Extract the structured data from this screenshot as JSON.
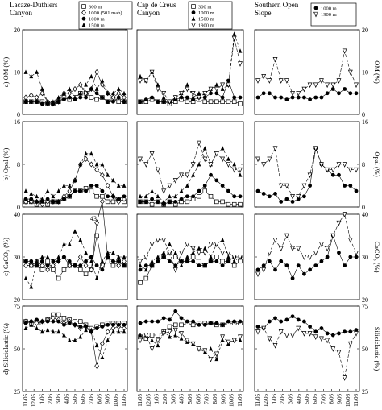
{
  "columns": [
    {
      "title": "Lacaze-Duthiers\nCanyon"
    },
    {
      "title": "Cap de Creus\nCanyon"
    },
    {
      "title": "Southern Open\nSlope"
    }
  ],
  "legends": [
    [
      "300 m",
      "1000 (501 mab)",
      "1000 m",
      "1500 m"
    ],
    [
      "300 m",
      "1000 m",
      "1500 m",
      "1900 m"
    ],
    [
      "1000 m",
      "1900 m"
    ]
  ],
  "rows": [
    {
      "left_label": "a) OM (%)",
      "right_label": "OM (%)",
      "ylim": [
        0,
        20
      ],
      "ticks": [
        "0",
        "10",
        "20"
      ]
    },
    {
      "left_label": "b) Opal (%)",
      "right_label": "Opal (%)",
      "ylim": [
        0,
        16
      ],
      "ticks": [
        "0",
        "8",
        "16"
      ]
    },
    {
      "left_label": "c) CaCO₃ (%)",
      "right_label": "CaCO₃ (%)",
      "ylim": [
        20,
        40
      ],
      "ticks": [
        "20",
        "30",
        "40"
      ]
    },
    {
      "left_label": "d) Siliciclastic (%)",
      "right_label": "Siliciclastic (%)",
      "ylim": [
        25,
        75
      ],
      "ticks": [
        "25",
        "50",
        "75"
      ]
    }
  ],
  "annotation": "43",
  "x_ticks": [
    "11/05",
    "12/05",
    "1/06",
    "2/06",
    "3/06",
    "4/06",
    "5/06",
    "6/06",
    "7/06",
    "8/06",
    "9/06",
    "10/06",
    "11/06"
  ],
  "chart_data": [
    {
      "type": "line",
      "panel": "Lacaze-Duthiers OM",
      "series": [
        {
          "name": "300 m",
          "marker": "open-square",
          "values": [
            3,
            3,
            3,
            3,
            2.5,
            2.5,
            3,
            4,
            3.5,
            4,
            5,
            5,
            4,
            3.5,
            4,
            3,
            3.5,
            3,
            3
          ]
        },
        {
          "name": "1000 (501 mab)",
          "marker": "open-diamond",
          "values": [
            4,
            4.5,
            4,
            5,
            3,
            2.5,
            3,
            5,
            5,
            6,
            7,
            5,
            6,
            10,
            7,
            5,
            4,
            5,
            4
          ]
        },
        {
          "name": "1000 m",
          "marker": "filled-circle",
          "values": [
            3,
            3,
            3,
            2.5,
            2.5,
            2.5,
            3,
            3.5,
            4,
            3.5,
            4,
            4,
            6,
            5,
            4,
            3,
            3,
            4,
            3
          ]
        },
        {
          "name": "1500 m",
          "marker": "filled-triangle",
          "values": [
            10,
            9,
            10,
            6,
            3,
            3,
            4,
            5,
            6,
            4,
            5,
            7,
            9,
            6,
            8,
            5,
            5,
            6,
            5
          ]
        }
      ]
    },
    {
      "type": "line",
      "panel": "Cap de Creus OM",
      "series": [
        {
          "name": "300 m",
          "marker": "open-square",
          "values": [
            3,
            3,
            3.5,
            3,
            3,
            2.5,
            3,
            3.5,
            3,
            3,
            3.5,
            3,
            3,
            3,
            3,
            3,
            3,
            2.5
          ]
        },
        {
          "name": "1000 m",
          "marker": "filled-circle",
          "values": [
            3,
            3.5,
            4,
            3,
            3,
            3,
            3.5,
            4,
            4,
            3.5,
            4,
            4,
            5,
            5,
            4,
            8,
            4,
            4
          ]
        },
        {
          "name": "1500 m",
          "marker": "filled-triangle",
          "values": [
            9,
            8,
            10,
            7,
            4,
            3,
            4,
            5,
            7,
            4,
            5,
            5,
            6,
            7,
            6,
            7,
            19,
            15
          ]
        },
        {
          "name": "1900 m",
          "marker": "open-inverted-triangle",
          "values": [
            8,
            8,
            10,
            6,
            5,
            3,
            4,
            5,
            6,
            5,
            4,
            5,
            6,
            6,
            7,
            7,
            18,
            12
          ]
        }
      ]
    },
    {
      "type": "line",
      "panel": "Southern Open Slope OM",
      "series": [
        {
          "name": "1000 m",
          "marker": "filled-circle",
          "values": [
            4,
            5,
            5,
            4,
            4,
            3.5,
            4,
            4,
            4,
            3.5,
            4,
            4,
            5,
            6,
            5,
            6,
            5,
            5
          ]
        },
        {
          "name": "1900 m",
          "marker": "open-inverted-triangle",
          "values": [
            8,
            9,
            8,
            13,
            8,
            8,
            5,
            5,
            6,
            7,
            7,
            8,
            7,
            7,
            8,
            15,
            10,
            7
          ]
        }
      ]
    },
    {
      "type": "line",
      "panel": "Lacaze-Duthiers Opal",
      "series": [
        {
          "name": "300 m",
          "marker": "open-square",
          "values": [
            1,
            1,
            0.5,
            1,
            0.5,
            1,
            1,
            1.5,
            2,
            3,
            3,
            3.5,
            3,
            2,
            2,
            1,
            1,
            1.5,
            1
          ]
        },
        {
          "name": "1000 (501 mab)",
          "marker": "open-diamond",
          "values": [
            1,
            1,
            1,
            0.5,
            1,
            1,
            1,
            2,
            3,
            5,
            8,
            9,
            8,
            7,
            6,
            4,
            2,
            1,
            1.5
          ]
        },
        {
          "name": "1000 m",
          "marker": "filled-circle",
          "values": [
            1.5,
            1.5,
            1,
            1,
            1.5,
            1,
            1,
            1.5,
            2,
            3,
            3,
            3,
            4,
            4,
            3,
            2,
            2,
            1.5,
            2
          ]
        },
        {
          "name": "1500 m",
          "marker": "filled-triangle",
          "values": [
            3,
            2.5,
            2,
            1.5,
            3,
            2,
            3,
            4,
            4,
            5,
            8,
            10,
            10,
            8,
            8,
            6,
            5,
            4,
            4
          ]
        }
      ]
    },
    {
      "type": "line",
      "panel": "Cap de Creus Opal",
      "series": [
        {
          "name": "300 m",
          "marker": "open-square",
          "values": [
            1,
            1,
            0.5,
            1,
            0.5,
            1,
            0.5,
            1,
            1,
            1.5,
            2,
            3,
            2,
            1,
            1,
            0.5,
            0.5,
            0.5
          ]
        },
        {
          "name": "1000 m",
          "marker": "filled-circle",
          "values": [
            1,
            1,
            1.5,
            1,
            0.5,
            1,
            1,
            1.5,
            2,
            2,
            3,
            4,
            6,
            5,
            4,
            3,
            2,
            2
          ]
        },
        {
          "name": "1500 m",
          "marker": "filled-triangle",
          "values": [
            2,
            2,
            3,
            2,
            1,
            2,
            2,
            3,
            4,
            6,
            8,
            11,
            8,
            10,
            11,
            9,
            8,
            6
          ]
        },
        {
          "name": "1900 m",
          "marker": "open-inverted-triangle",
          "values": [
            9,
            8,
            10,
            7,
            3,
            4,
            5,
            6,
            6,
            8,
            12,
            9,
            8,
            10,
            9,
            8,
            7,
            7
          ]
        }
      ]
    },
    {
      "type": "line",
      "panel": "Southern Open Slope Opal",
      "series": [
        {
          "name": "1000 m",
          "marker": "filled-circle",
          "values": [
            3,
            2.5,
            2,
            2.5,
            1,
            1.5,
            1,
            1.5,
            2,
            4,
            11,
            8,
            7,
            6,
            6,
            4,
            4,
            3
          ]
        },
        {
          "name": "1900 m",
          "marker": "open-inverted-triangle",
          "values": [
            9,
            8,
            9,
            11,
            4,
            4,
            2,
            2,
            4,
            6,
            11,
            8,
            7,
            7,
            8,
            8,
            7,
            7
          ]
        }
      ]
    },
    {
      "type": "line",
      "panel": "Lacaze-Duthiers CaCO3",
      "series": [
        {
          "name": "300 m",
          "marker": "open-square",
          "values": [
            29,
            28,
            28,
            27,
            29,
            27,
            25,
            27,
            28,
            28,
            27,
            26,
            27,
            35,
            28,
            29,
            28,
            29,
            28
          ]
        },
        {
          "name": "1000 (501 mab)",
          "marker": "open-diamond",
          "values": [
            28,
            28,
            29,
            28,
            27,
            28,
            29,
            30,
            28,
            28,
            30,
            28,
            27,
            38,
            43,
            30,
            29,
            28,
            29
          ]
        },
        {
          "name": "1000 m",
          "marker": "filled-circle",
          "values": [
            29,
            29,
            28,
            29,
            28,
            29,
            29,
            30,
            29,
            28,
            28,
            29,
            30,
            28,
            27,
            30,
            29,
            29,
            28
          ]
        },
        {
          "name": "1500 m",
          "marker": "filled-triangle",
          "values": [
            25,
            23,
            29,
            30,
            30,
            29,
            30,
            33,
            33,
            36,
            34,
            31,
            29,
            25,
            29,
            31,
            31,
            30,
            30
          ]
        }
      ]
    },
    {
      "type": "line",
      "panel": "Cap de Creus CaCO3",
      "series": [
        {
          "name": "300 m",
          "marker": "open-square",
          "values": [
            24,
            25,
            28,
            29,
            30,
            31,
            30,
            29,
            29,
            30,
            29,
            28,
            29,
            30,
            29,
            29,
            28,
            29
          ]
        },
        {
          "name": "1000 m",
          "marker": "filled-circle",
          "values": [
            27,
            28,
            28,
            29,
            30,
            29,
            28,
            29,
            29,
            29,
            28,
            28,
            29,
            29,
            28,
            29,
            30,
            30
          ]
        },
        {
          "name": "1500 m",
          "marker": "filled-triangle",
          "values": [
            28,
            27,
            29,
            30,
            31,
            33,
            31,
            28,
            30,
            31,
            32,
            32,
            30,
            33,
            34,
            30,
            29,
            30
          ]
        },
        {
          "name": "1900 m",
          "marker": "open-inverted-triangle",
          "values": [
            29,
            30,
            33,
            34,
            34,
            31,
            27,
            31,
            33,
            32,
            31,
            31,
            33,
            33,
            31,
            31,
            30,
            30
          ]
        }
      ]
    },
    {
      "type": "line",
      "panel": "Southern Open Slope CaCO3",
      "series": [
        {
          "name": "1000 m",
          "marker": "filled-circle",
          "values": [
            27,
            28,
            29,
            27,
            29,
            28,
            25,
            28,
            26,
            27,
            28,
            29,
            30,
            35,
            31,
            28,
            30,
            30
          ]
        },
        {
          "name": "1900 m",
          "marker": "open-inverted-triangle",
          "values": [
            26,
            27,
            31,
            34,
            32,
            35,
            32,
            32,
            30,
            30,
            31,
            33,
            32,
            35,
            38,
            40,
            34,
            31
          ]
        }
      ]
    },
    {
      "type": "line",
      "panel": "Lacaze-Duthiers Siliciclastic",
      "series": [
        {
          "name": "300 m",
          "marker": "open-square",
          "values": [
            66,
            65,
            66,
            65,
            67,
            70,
            70,
            68,
            67,
            66,
            66,
            64,
            62,
            63,
            64,
            65,
            65,
            65,
            65
          ]
        },
        {
          "name": "1000 (501 mab)",
          "marker": "open-diamond",
          "values": [
            66,
            66,
            65,
            66,
            67,
            68,
            67,
            65,
            66,
            64,
            62,
            63,
            60,
            40,
            53,
            60,
            62,
            63,
            62
          ]
        },
        {
          "name": "1000 m",
          "marker": "filled-circle",
          "values": [
            65,
            66,
            67,
            66,
            66,
            66,
            66,
            64,
            65,
            64,
            63,
            63,
            60,
            62,
            63,
            64,
            64,
            64,
            64
          ]
        },
        {
          "name": "1500 m",
          "marker": "filled-triangle",
          "values": [
            62,
            64,
            62,
            60,
            61,
            60,
            60,
            58,
            55,
            55,
            57,
            61,
            61,
            52,
            45,
            55,
            60,
            60,
            60
          ]
        }
      ]
    },
    {
      "type": "line",
      "panel": "Cap de Creus Siliciclastic",
      "series": [
        {
          "name": "300 m",
          "marker": "open-square",
          "values": [
            57,
            56,
            58,
            58,
            60,
            63,
            64,
            64,
            65,
            64,
            65,
            65,
            65,
            64,
            64,
            65,
            65,
            65
          ]
        },
        {
          "name": "1000 m",
          "marker": "filled-circle",
          "values": [
            65,
            66,
            66,
            66,
            68,
            67,
            72,
            68,
            66,
            66,
            64,
            64,
            65,
            65,
            64,
            66,
            66,
            66
          ]
        },
        {
          "name": "1500 m",
          "marker": "filled-triangle",
          "values": [
            58,
            58,
            55,
            52,
            60,
            57,
            58,
            56,
            54,
            53,
            50,
            48,
            50,
            44,
            55,
            53,
            55,
            55
          ]
        },
        {
          "name": "1900 m",
          "marker": "open-inverted-triangle",
          "values": [
            55,
            58,
            50,
            55,
            59,
            60,
            61,
            59,
            55,
            53,
            50,
            49,
            44,
            47,
            57,
            54,
            55,
            57
          ]
        }
      ]
    },
    {
      "type": "line",
      "panel": "Southern Open Slope Siliciclastic",
      "series": [
        {
          "name": "1000 m",
          "marker": "filled-circle",
          "values": [
            63,
            62,
            66,
            68,
            66,
            67,
            69,
            67,
            66,
            63,
            60,
            62,
            59,
            58,
            59,
            60,
            60,
            61
          ]
        },
        {
          "name": "1900 m",
          "marker": "open-inverted-triangle",
          "values": [
            60,
            62,
            56,
            52,
            60,
            58,
            58,
            62,
            59,
            59,
            57,
            56,
            55,
            50,
            48,
            33,
            53,
            59
          ]
        }
      ]
    }
  ]
}
